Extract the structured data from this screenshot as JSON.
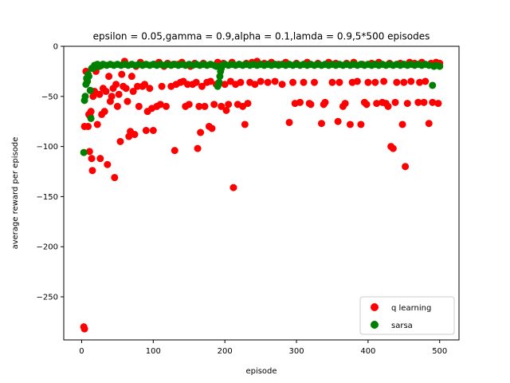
{
  "chart_data": {
    "type": "scatter",
    "title": "epsilon = 0.05,gamma = 0.9,alpha = 0.1,lamda = 0.9,5*500 episodes",
    "xlabel": "episode",
    "ylabel": "average reward per episode",
    "xlim": [
      -25,
      527
    ],
    "ylim": [
      -293,
      0
    ],
    "xticks": [
      0,
      100,
      200,
      300,
      400,
      500
    ],
    "yticks": [
      0,
      -50,
      -100,
      -150,
      -200,
      -250
    ],
    "xtick_labels": [
      "0",
      "100",
      "200",
      "300",
      "400",
      "500"
    ],
    "ytick_labels": [
      "0",
      "−50",
      "−100",
      "−150",
      "−200",
      "−250"
    ],
    "legend_position": "lower-right",
    "grid": false,
    "series": [
      {
        "name": "q learning",
        "color": "#ff0000",
        "points": [
          [
            3,
            -280
          ],
          [
            4,
            -282
          ],
          [
            4,
            -80
          ],
          [
            6,
            -25
          ],
          [
            8,
            -35
          ],
          [
            9,
            -80
          ],
          [
            10,
            -68
          ],
          [
            11,
            -105
          ],
          [
            12,
            -70
          ],
          [
            13,
            -65
          ],
          [
            14,
            -112
          ],
          [
            15,
            -124
          ],
          [
            16,
            -50
          ],
          [
            18,
            -45
          ],
          [
            20,
            -25
          ],
          [
            22,
            -78
          ],
          [
            25,
            -48
          ],
          [
            26,
            -112
          ],
          [
            28,
            -68
          ],
          [
            30,
            -42
          ],
          [
            32,
            -65
          ],
          [
            34,
            -45
          ],
          [
            36,
            -118
          ],
          [
            38,
            -30
          ],
          [
            40,
            -55
          ],
          [
            42,
            -50
          ],
          [
            44,
            -42
          ],
          [
            46,
            -131
          ],
          [
            48,
            -38
          ],
          [
            50,
            -60
          ],
          [
            52,
            -48
          ],
          [
            54,
            -95
          ],
          [
            56,
            -28
          ],
          [
            58,
            -40
          ],
          [
            60,
            -15
          ],
          [
            62,
            -42
          ],
          [
            64,
            -55
          ],
          [
            66,
            -90
          ],
          [
            68,
            -85
          ],
          [
            70,
            -30
          ],
          [
            72,
            -45
          ],
          [
            74,
            -88
          ],
          [
            76,
            -20
          ],
          [
            78,
            -40
          ],
          [
            80,
            -60
          ],
          [
            82,
            -16
          ],
          [
            85,
            -40
          ],
          [
            88,
            -38
          ],
          [
            90,
            -84
          ],
          [
            92,
            -65
          ],
          [
            95,
            -42
          ],
          [
            98,
            -62
          ],
          [
            100,
            -84
          ],
          [
            102,
            -18
          ],
          [
            105,
            -60
          ],
          [
            108,
            -16
          ],
          [
            110,
            -58
          ],
          [
            112,
            -40
          ],
          [
            115,
            -20
          ],
          [
            118,
            -60
          ],
          [
            120,
            -17
          ],
          [
            125,
            -40
          ],
          [
            128,
            -18
          ],
          [
            130,
            -104
          ],
          [
            132,
            -38
          ],
          [
            135,
            -18
          ],
          [
            138,
            -36
          ],
          [
            140,
            -16
          ],
          [
            142,
            -35
          ],
          [
            145,
            -60
          ],
          [
            148,
            -38
          ],
          [
            150,
            -58
          ],
          [
            152,
            -20
          ],
          [
            155,
            -38
          ],
          [
            158,
            -17
          ],
          [
            160,
            -36
          ],
          [
            162,
            -102
          ],
          [
            164,
            -60
          ],
          [
            166,
            -86
          ],
          [
            168,
            -40
          ],
          [
            170,
            -17
          ],
          [
            172,
            -60
          ],
          [
            175,
            -36
          ],
          [
            178,
            -80
          ],
          [
            180,
            -35
          ],
          [
            182,
            -82
          ],
          [
            185,
            -58
          ],
          [
            188,
            -38
          ],
          [
            190,
            -16
          ],
          [
            195,
            -60
          ],
          [
            198,
            -17
          ],
          [
            200,
            -38
          ],
          [
            202,
            -64
          ],
          [
            205,
            -58
          ],
          [
            208,
            -35
          ],
          [
            210,
            -16
          ],
          [
            212,
            -141
          ],
          [
            215,
            -38
          ],
          [
            218,
            -58
          ],
          [
            220,
            -18
          ],
          [
            222,
            -36
          ],
          [
            225,
            -60
          ],
          [
            228,
            -78
          ],
          [
            230,
            -17
          ],
          [
            232,
            -57
          ],
          [
            235,
            -36
          ],
          [
            238,
            -16
          ],
          [
            240,
            -18
          ],
          [
            242,
            -38
          ],
          [
            245,
            -15
          ],
          [
            250,
            -35
          ],
          [
            255,
            -17
          ],
          [
            260,
            -36
          ],
          [
            265,
            -16
          ],
          [
            270,
            -35
          ],
          [
            275,
            -18
          ],
          [
            280,
            -38
          ],
          [
            285,
            -16
          ],
          [
            290,
            -76
          ],
          [
            295,
            -36
          ],
          [
            298,
            -57
          ],
          [
            300,
            -17
          ],
          [
            305,
            -56
          ],
          [
            310,
            -36
          ],
          [
            315,
            -16
          ],
          [
            318,
            -57
          ],
          [
            320,
            -58
          ],
          [
            325,
            -36
          ],
          [
            330,
            -17
          ],
          [
            335,
            -77
          ],
          [
            338,
            -58
          ],
          [
            340,
            -56
          ],
          [
            345,
            -16
          ],
          [
            350,
            -36
          ],
          [
            355,
            -17
          ],
          [
            358,
            -75
          ],
          [
            360,
            -36
          ],
          [
            365,
            -60
          ],
          [
            368,
            -57
          ],
          [
            370,
            -17
          ],
          [
            375,
            -78
          ],
          [
            378,
            -36
          ],
          [
            380,
            -16
          ],
          [
            385,
            -35
          ],
          [
            390,
            -78
          ],
          [
            392,
            -18
          ],
          [
            395,
            -56
          ],
          [
            398,
            -58
          ],
          [
            400,
            -36
          ],
          [
            405,
            -17
          ],
          [
            410,
            -36
          ],
          [
            412,
            -57
          ],
          [
            415,
            -16
          ],
          [
            420,
            -56
          ],
          [
            422,
            -35
          ],
          [
            425,
            -57
          ],
          [
            428,
            -60
          ],
          [
            430,
            -17
          ],
          [
            432,
            -100
          ],
          [
            435,
            -102
          ],
          [
            438,
            -56
          ],
          [
            440,
            -36
          ],
          [
            445,
            -17
          ],
          [
            448,
            -78
          ],
          [
            450,
            -36
          ],
          [
            452,
            -120
          ],
          [
            455,
            -57
          ],
          [
            458,
            -16
          ],
          [
            460,
            -35
          ],
          [
            465,
            -17
          ],
          [
            470,
            -56
          ],
          [
            472,
            -36
          ],
          [
            475,
            -16
          ],
          [
            478,
            -56
          ],
          [
            480,
            -35
          ],
          [
            485,
            -77
          ],
          [
            488,
            -17
          ],
          [
            490,
            -56
          ],
          [
            495,
            -16
          ],
          [
            498,
            -57
          ],
          [
            500,
            -17
          ]
        ]
      },
      {
        "name": "sarsa",
        "color": "#008000",
        "points": [
          [
            3,
            -106
          ],
          [
            4,
            -54
          ],
          [
            5,
            -50
          ],
          [
            6,
            -38
          ],
          [
            7,
            -32
          ],
          [
            8,
            -35
          ],
          [
            9,
            -28
          ],
          [
            10,
            -30
          ],
          [
            12,
            -44
          ],
          [
            13,
            -72
          ],
          [
            14,
            -22
          ],
          [
            16,
            -22
          ],
          [
            18,
            -19
          ],
          [
            20,
            -20
          ],
          [
            22,
            -18
          ],
          [
            25,
            -20
          ],
          [
            28,
            -19
          ],
          [
            30,
            -18
          ],
          [
            35,
            -19
          ],
          [
            40,
            -18
          ],
          [
            45,
            -19
          ],
          [
            50,
            -18
          ],
          [
            55,
            -19
          ],
          [
            60,
            -18
          ],
          [
            65,
            -19
          ],
          [
            70,
            -18
          ],
          [
            75,
            -19
          ],
          [
            80,
            -18
          ],
          [
            85,
            -19
          ],
          [
            90,
            -18
          ],
          [
            95,
            -19
          ],
          [
            100,
            -18
          ],
          [
            105,
            -19
          ],
          [
            110,
            -18
          ],
          [
            115,
            -19
          ],
          [
            120,
            -18
          ],
          [
            125,
            -19
          ],
          [
            130,
            -18
          ],
          [
            135,
            -19
          ],
          [
            140,
            -18
          ],
          [
            145,
            -19
          ],
          [
            150,
            -18
          ],
          [
            155,
            -19
          ],
          [
            160,
            -18
          ],
          [
            165,
            -19
          ],
          [
            170,
            -18
          ],
          [
            175,
            -19
          ],
          [
            180,
            -18
          ],
          [
            185,
            -19
          ],
          [
            188,
            -20
          ],
          [
            190,
            -40
          ],
          [
            191,
            -38
          ],
          [
            192,
            -36
          ],
          [
            193,
            -30
          ],
          [
            194,
            -25
          ],
          [
            195,
            -22
          ],
          [
            196,
            -19
          ],
          [
            200,
            -18
          ],
          [
            205,
            -19
          ],
          [
            210,
            -18
          ],
          [
            215,
            -19
          ],
          [
            220,
            -18
          ],
          [
            225,
            -19
          ],
          [
            230,
            -18
          ],
          [
            235,
            -19
          ],
          [
            240,
            -18
          ],
          [
            245,
            -19
          ],
          [
            250,
            -18
          ],
          [
            255,
            -19
          ],
          [
            260,
            -18
          ],
          [
            265,
            -19
          ],
          [
            270,
            -18
          ],
          [
            275,
            -19
          ],
          [
            280,
            -18
          ],
          [
            285,
            -19
          ],
          [
            290,
            -18
          ],
          [
            295,
            -19
          ],
          [
            300,
            -18
          ],
          [
            305,
            -19
          ],
          [
            310,
            -18
          ],
          [
            315,
            -19
          ],
          [
            320,
            -18
          ],
          [
            325,
            -19
          ],
          [
            330,
            -18
          ],
          [
            335,
            -19
          ],
          [
            340,
            -18
          ],
          [
            345,
            -19
          ],
          [
            350,
            -18
          ],
          [
            355,
            -19
          ],
          [
            360,
            -18
          ],
          [
            365,
            -19
          ],
          [
            370,
            -18
          ],
          [
            375,
            -19
          ],
          [
            380,
            -18
          ],
          [
            385,
            -19
          ],
          [
            390,
            -18
          ],
          [
            395,
            -19
          ],
          [
            400,
            -18
          ],
          [
            405,
            -19
          ],
          [
            410,
            -18
          ],
          [
            415,
            -19
          ],
          [
            420,
            -18
          ],
          [
            425,
            -19
          ],
          [
            430,
            -18
          ],
          [
            435,
            -19
          ],
          [
            440,
            -18
          ],
          [
            445,
            -19
          ],
          [
            450,
            -18
          ],
          [
            455,
            -19
          ],
          [
            460,
            -18
          ],
          [
            465,
            -19
          ],
          [
            470,
            -18
          ],
          [
            475,
            -19
          ],
          [
            480,
            -18
          ],
          [
            485,
            -19
          ],
          [
            490,
            -39
          ],
          [
            492,
            -20
          ],
          [
            495,
            -19
          ],
          [
            500,
            -20
          ]
        ]
      }
    ]
  }
}
